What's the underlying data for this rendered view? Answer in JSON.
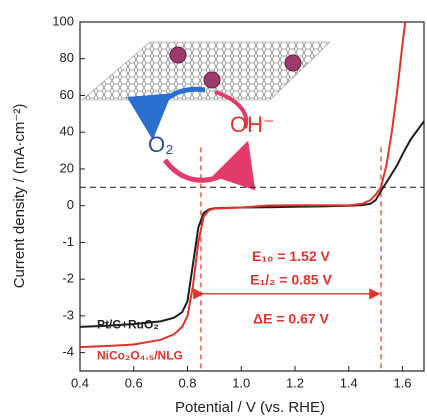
{
  "chart_data": {
    "type": "line",
    "x_label": "Potential / V (vs. RHE)",
    "y_label": "Current density / (mA·cm⁻²)",
    "xlim": [
      0.4,
      1.68
    ],
    "xticks": [
      0.4,
      0.6,
      0.8,
      {
        "value": 1,
        "label": "1.0"
      },
      1.2,
      1.4,
      1.6
    ],
    "ylim": [
      -4.5,
      100
    ],
    "yticks": [
      100,
      80,
      60,
      40,
      20,
      0,
      -1,
      -2,
      -3,
      -4
    ],
    "series": [
      {
        "name": "Pt/C+RuO₂",
        "color": "#1f1f1f",
        "x": [
          0.4,
          0.5,
          0.6,
          0.7,
          0.75,
          0.78,
          0.8,
          0.82,
          0.84,
          0.86,
          0.88,
          0.9,
          1.0,
          1.1,
          1.2,
          1.3,
          1.4,
          1.45,
          1.48,
          1.5,
          1.52,
          1.55,
          1.58,
          1.6,
          1.63,
          1.68
        ],
        "values": [
          -3.3,
          -3.27,
          -3.22,
          -3.15,
          -3.05,
          -2.9,
          -2.6,
          -1.6,
          -0.6,
          -0.2,
          -0.1,
          -0.07,
          -0.05,
          -0.04,
          -0.03,
          -0.02,
          0,
          0.3,
          1,
          3,
          8,
          15,
          22,
          28,
          36,
          46
        ]
      },
      {
        "name": "NiCo₂O₄.₅/NLG",
        "color": "#e0332c",
        "x": [
          0.4,
          0.5,
          0.6,
          0.7,
          0.75,
          0.78,
          0.8,
          0.82,
          0.84,
          0.86,
          0.88,
          0.9,
          1.0,
          1.1,
          1.2,
          1.3,
          1.4,
          1.45,
          1.48,
          1.5,
          1.52,
          1.54,
          1.56,
          1.58,
          1.6,
          1.61
        ],
        "values": [
          -3.85,
          -3.82,
          -3.78,
          -3.65,
          -3.5,
          -3.3,
          -3.0,
          -2.2,
          -1.0,
          -0.3,
          -0.12,
          -0.08,
          -0.05,
          0.1,
          0.25,
          0.2,
          0.15,
          1,
          3,
          6,
          10,
          22,
          40,
          62,
          88,
          100
        ]
      }
    ],
    "reference_lines": {
      "x": [
        0.85,
        1.52
      ],
      "y": [
        10
      ]
    },
    "arrow_y": -2.4,
    "annotations": [
      "E₁₀ = 1.52 V",
      "E₁/₂ = 0.85 V",
      "ΔE = 0.67 V"
    ],
    "inset_labels": [
      "O₂",
      "OH⁻"
    ]
  }
}
